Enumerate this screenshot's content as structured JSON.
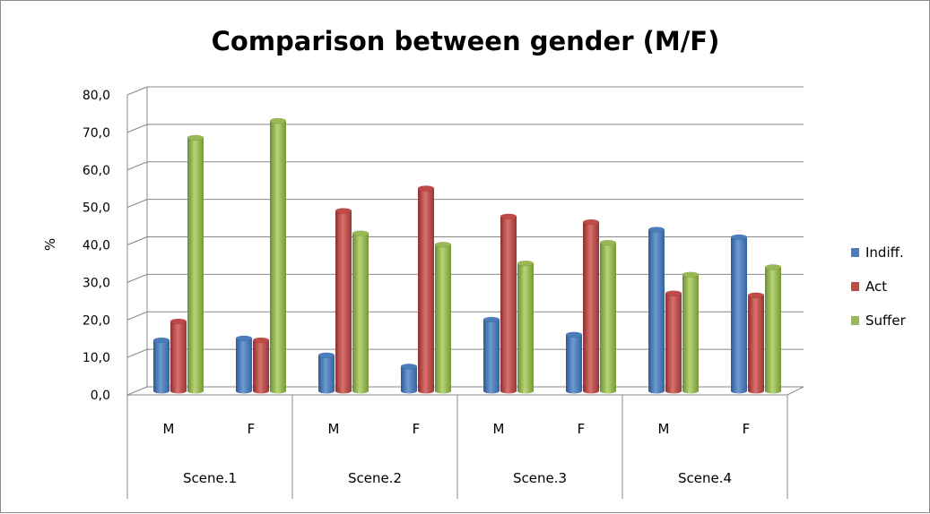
{
  "chart_data": {
    "type": "bar",
    "title": "Comparison between gender (M/F)",
    "ylabel": "%",
    "ylim": [
      0,
      80
    ],
    "yticks": [
      "0,0",
      "10,0",
      "20,0",
      "30,0",
      "40,0",
      "50,0",
      "60,0",
      "70,0",
      "80,0"
    ],
    "groups": [
      "Scene.1",
      "Scene.2",
      "Scene.3",
      "Scene.4"
    ],
    "subcategories": [
      "M",
      "F",
      "M",
      "F",
      "M",
      "F",
      "M",
      "F"
    ],
    "series": [
      {
        "name": "Indiff.",
        "color": "#4a7ebb",
        "values": [
          13.5,
          14.0,
          9.5,
          6.5,
          19.0,
          15.0,
          43.0,
          41.0
        ]
      },
      {
        "name": "Act",
        "color": "#be4b48",
        "values": [
          18.5,
          13.5,
          48.0,
          54.0,
          46.5,
          45.0,
          26.0,
          25.5
        ]
      },
      {
        "name": "Suffer",
        "color": "#98b954",
        "values": [
          67.5,
          72.0,
          42.0,
          39.0,
          34.0,
          39.5,
          31.0,
          33.0
        ]
      }
    ],
    "grid": true,
    "legend": "right"
  }
}
